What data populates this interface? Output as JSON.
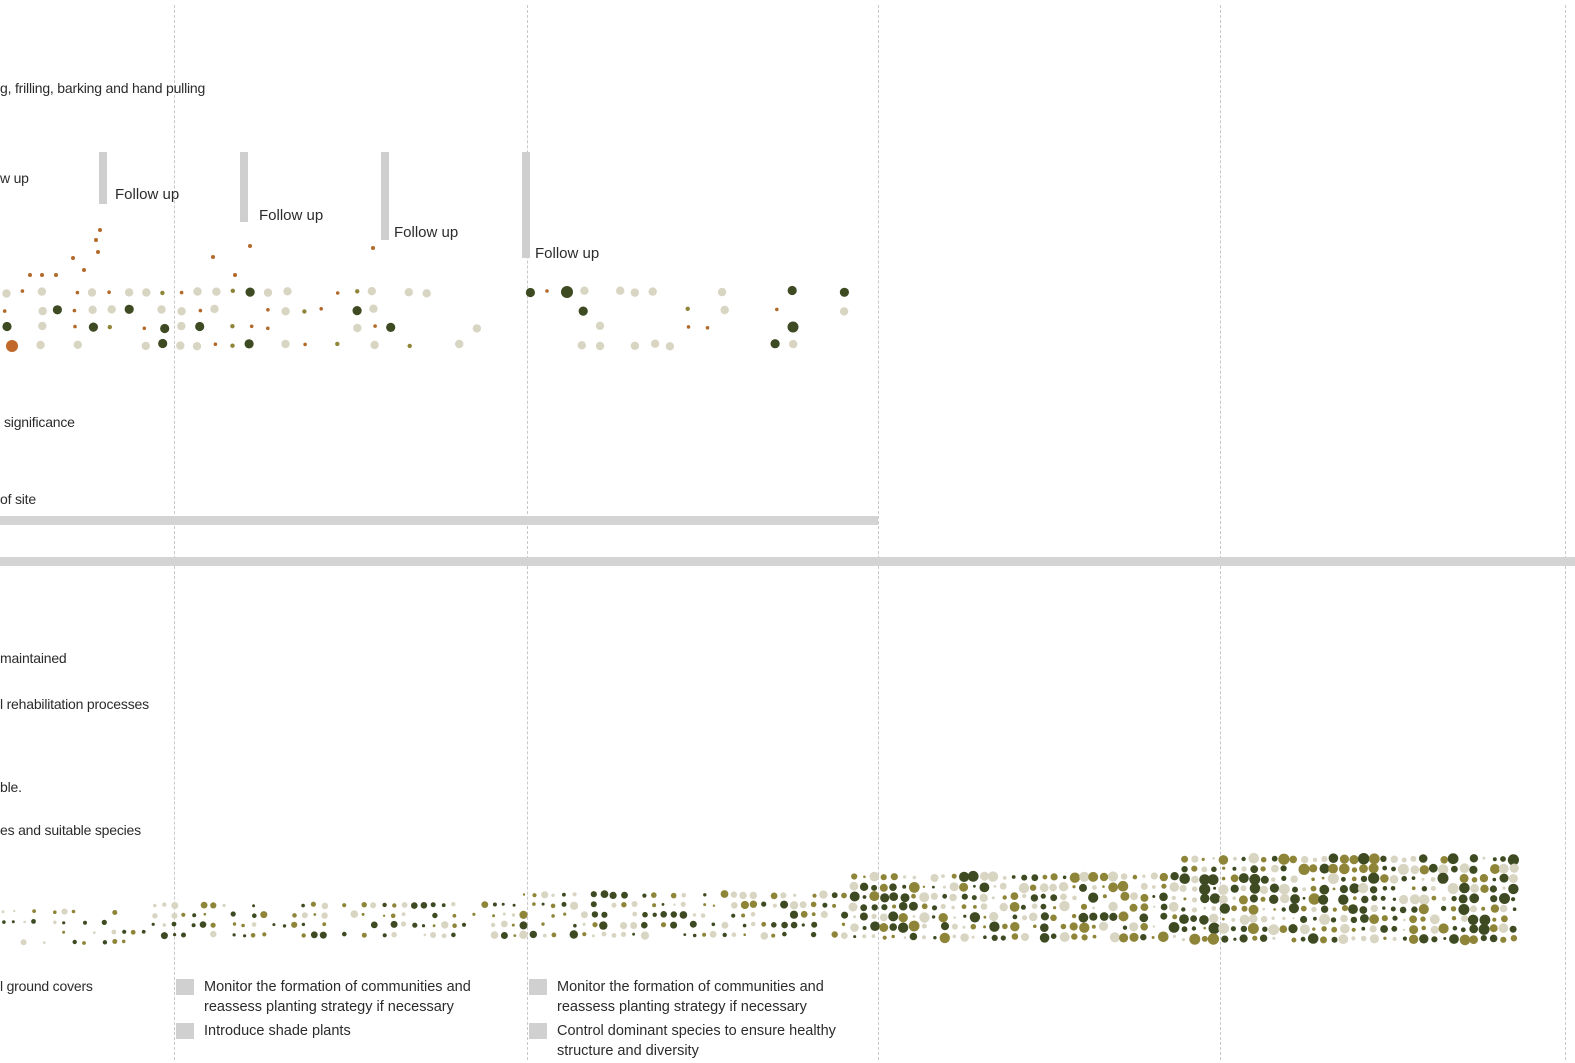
{
  "colors": {
    "dark_green": "#3e4b22",
    "olive": "#8f8539",
    "beige": "#d9d5c3",
    "orange": "#b26a2a",
    "rust": "#c0692a",
    "grid_line": "#c8c8c8",
    "bar_gray": "#d4d4d4"
  },
  "top_section": {
    "row_labels": {
      "removal_methods": "g, frilling, barking and hand pulling",
      "follow_up_partial": "w up",
      "significance": "significance",
      "site": "of site"
    },
    "follow_up_label": "Follow up",
    "follow_ups": [
      "Follow up",
      "Follow up",
      "Follow up",
      "Follow up"
    ]
  },
  "bottom_section": {
    "row_labels": {
      "maintained": "maintained",
      "rehabilitation": "l rehabilitation processes",
      "ble": "ble.",
      "species": "es and suitable species",
      "ground_covers": "l ground covers"
    },
    "tasks_col2": [
      "Monitor the formation of communities and reassess planting strategy if necessary",
      "Introduce shade plants"
    ],
    "tasks_col3": [
      "Monitor the formation of communities and reassess planting strategy if necessary",
      "Control dominant species to ensure healthy structure and diversity"
    ]
  }
}
